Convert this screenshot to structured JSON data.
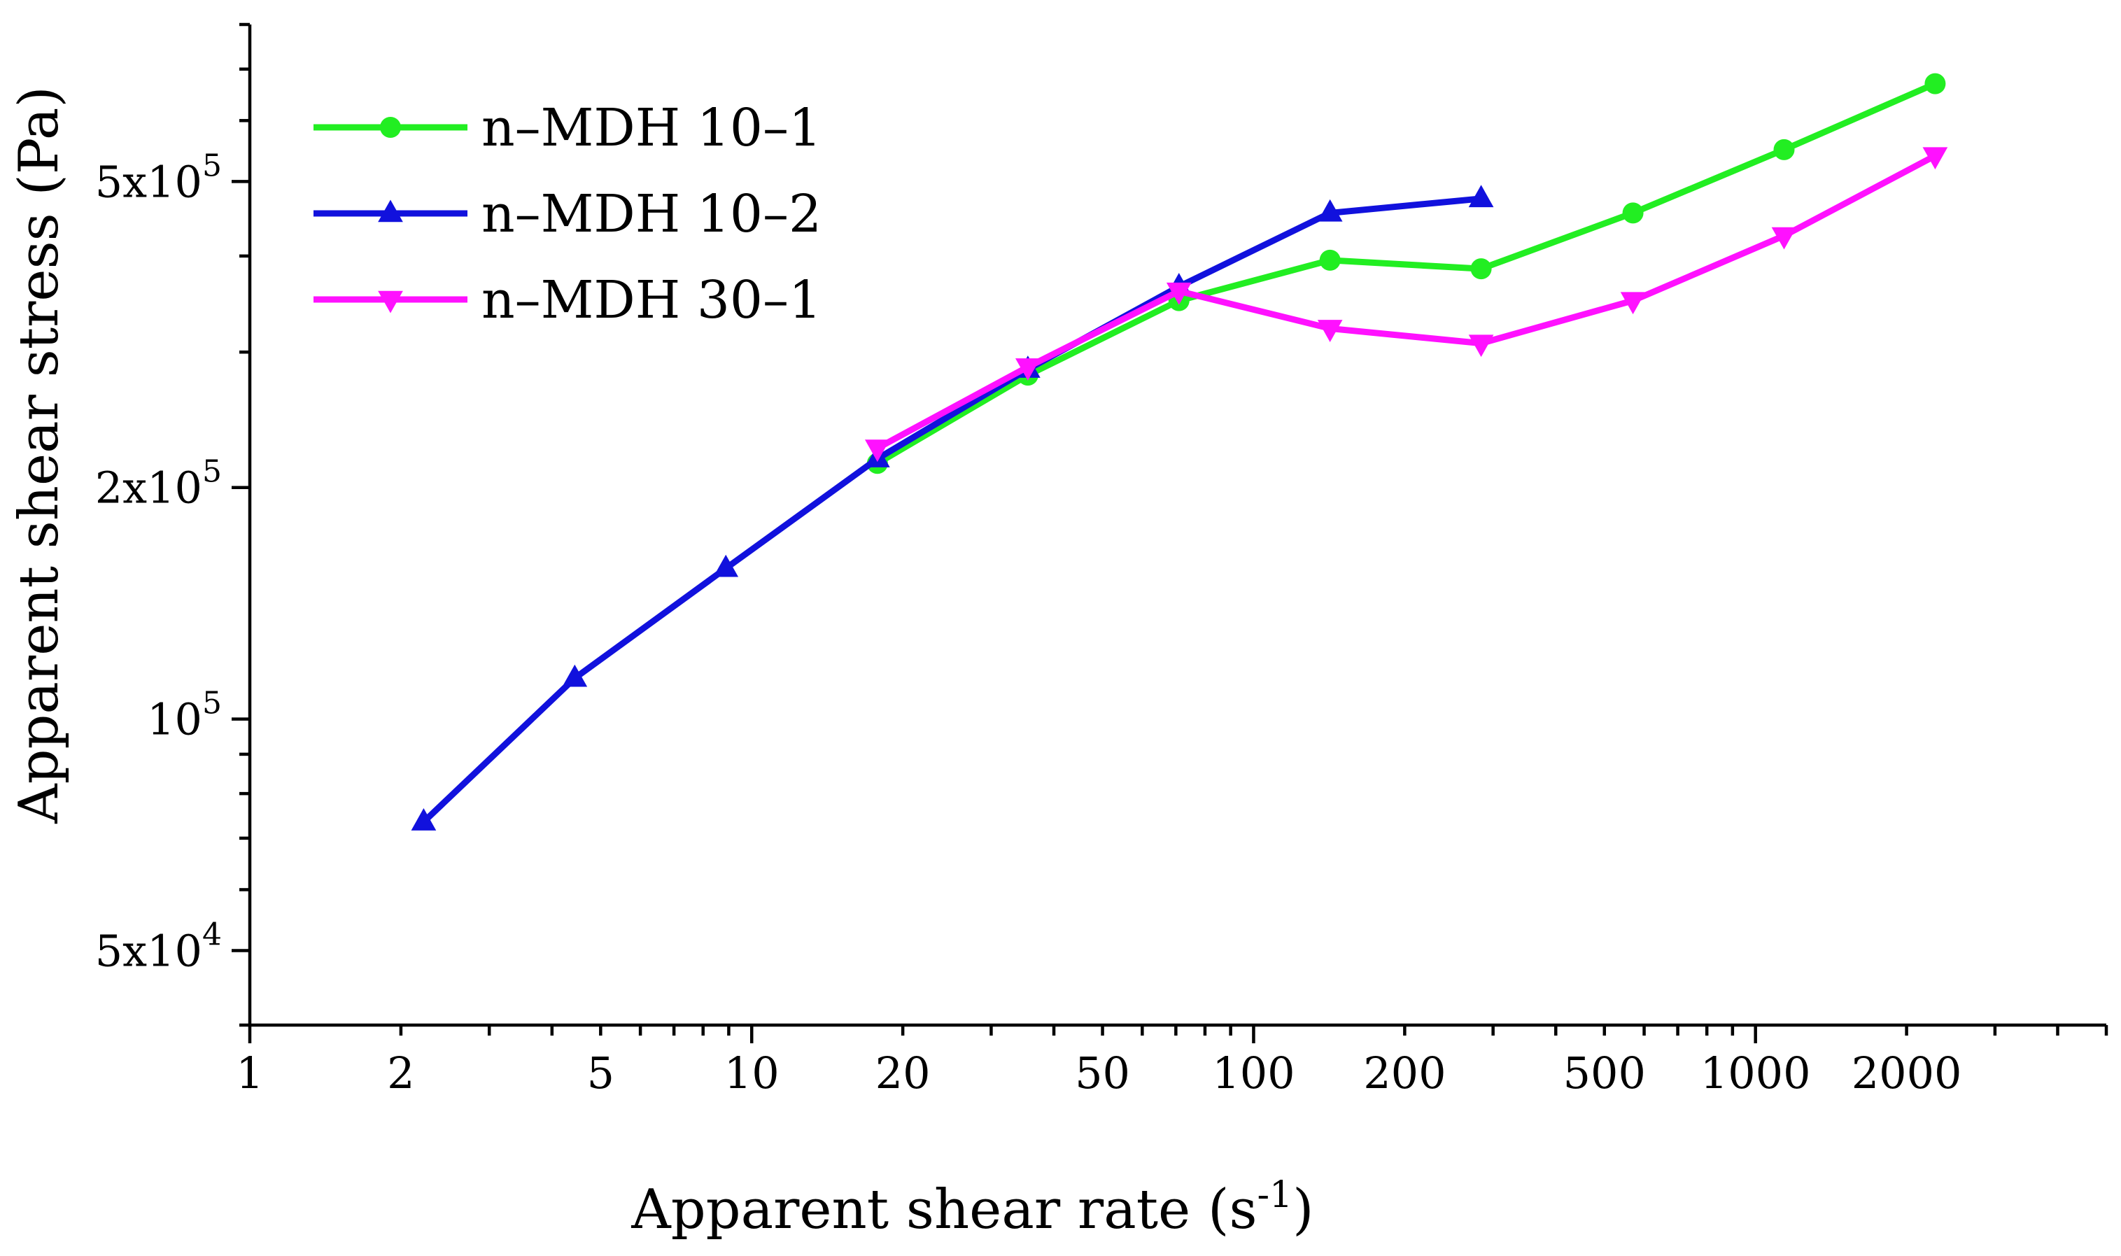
{
  "chart_data": {
    "type": "line",
    "title": "",
    "xlabel": "Apparent shear rate (s",
    "xlabel_sup": "-1",
    "xlabel_suffix": ")",
    "ylabel": "Apparent shear stress (Pa)",
    "xscale": "log",
    "yscale": "log",
    "xlim": [
      1,
      5000
    ],
    "ylim": [
      40000,
      800000
    ],
    "x_ticks": [
      {
        "value": 1,
        "label": "1"
      },
      {
        "value": 2,
        "label": "2"
      },
      {
        "value": 5,
        "label": "5"
      },
      {
        "value": 10,
        "label": "10"
      },
      {
        "value": 20,
        "label": "20"
      },
      {
        "value": 50,
        "label": "50"
      },
      {
        "value": 100,
        "label": "100"
      },
      {
        "value": 200,
        "label": "200"
      },
      {
        "value": 500,
        "label": "500"
      },
      {
        "value": 1000,
        "label": "1000"
      },
      {
        "value": 2000,
        "label": "2000"
      }
    ],
    "y_ticks": [
      {
        "value": 50000,
        "base": "5x10",
        "exp": "4"
      },
      {
        "value": 100000,
        "base": "10",
        "exp": "5"
      },
      {
        "value": 200000,
        "base": "2x10",
        "exp": "5"
      },
      {
        "value": 500000,
        "base": "5x10",
        "exp": "5"
      }
    ],
    "legend_position": "top-left",
    "grid": false,
    "series": [
      {
        "name": "n–MDH 10–1",
        "color": "#22ee22",
        "marker": "circle",
        "x": [
          17.8,
          35.5,
          71,
          142,
          284,
          570,
          1140,
          2280
        ],
        "y": [
          215000,
          280000,
          350000,
          395000,
          385000,
          455000,
          550000,
          670000
        ]
      },
      {
        "name": "n–MDH 10–2",
        "color": "#1111dd",
        "marker": "triangle-up",
        "x": [
          2.22,
          4.44,
          8.88,
          17.8,
          35.5,
          71,
          142,
          284
        ],
        "y": [
          73500,
          113000,
          157000,
          218000,
          285000,
          365000,
          455000,
          475000
        ]
      },
      {
        "name": "n–MDH 30–1",
        "color": "#ff11ff",
        "marker": "triangle-down",
        "x": [
          17.8,
          35.5,
          71,
          142,
          284,
          570,
          1140,
          2280
        ],
        "y": [
          225000,
          287000,
          360000,
          322000,
          308000,
          350000,
          425000,
          540000
        ]
      }
    ]
  }
}
